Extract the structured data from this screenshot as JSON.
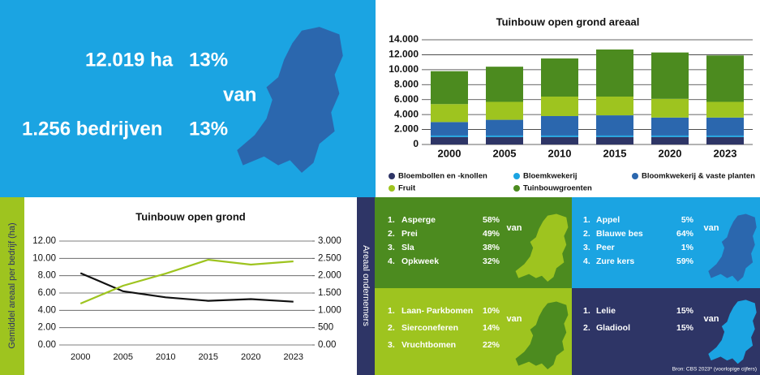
{
  "summary": {
    "area": "12.019 ha",
    "area_share": "13%",
    "van": "van",
    "farms": "1.256 bedrijven",
    "farms_share": "13%"
  },
  "chart_data": [
    {
      "type": "stacked_bar",
      "title": "Tuinbouw open grond areaal",
      "categories": [
        "2000",
        "2005",
        "2010",
        "2015",
        "2020",
        "2023"
      ],
      "series": [
        {
          "name": "Bloembollen en -knollen",
          "color": "#2e3566",
          "values": [
            1000,
            1000,
            1000,
            1000,
            1000,
            1000
          ]
        },
        {
          "name": "Bloemkwekerij",
          "color": "#1ba4e2",
          "values": [
            200,
            200,
            200,
            200,
            200,
            200
          ]
        },
        {
          "name": "Bloomkwekerij & vaste planten",
          "color": "#2b67ae",
          "values": [
            1800,
            2100,
            2600,
            2700,
            2400,
            2400
          ]
        },
        {
          "name": "Fruit",
          "color": "#9ec41f",
          "values": [
            2400,
            2400,
            2600,
            2500,
            2500,
            2100
          ]
        },
        {
          "name": "Tuinbouwgroenten",
          "color": "#4c8b1f",
          "values": [
            4400,
            4700,
            5100,
            6300,
            6200,
            6200
          ]
        }
      ],
      "ylim": [
        0,
        14000
      ],
      "yticks": [
        0,
        {
          "value": 2000,
          "label": "2.000"
        },
        {
          "value": 4000,
          "label": "4.000"
        },
        {
          "value": 6000,
          "label": "6.000"
        },
        {
          "value": 8000,
          "label": "8.000"
        },
        {
          "value": 10000,
          "label": "10.000"
        },
        {
          "value": 12000,
          "label": "12.000"
        },
        {
          "value": 14000,
          "label": "14.000"
        }
      ],
      "grid": true
    },
    {
      "type": "line",
      "title": "Tuinbouw open grond",
      "y_label": "Gemiddel areaal per bedrijf (ha)",
      "categories": [
        "2000",
        "2005",
        "2010",
        "2015",
        "2020",
        "2023"
      ],
      "series": [
        {
          "color": "#111111",
          "axis": "y",
          "values": [
            8.3,
            6.2,
            5.5,
            5.1,
            5.3,
            5.0
          ]
        },
        {
          "color": "#9ec41f",
          "axis": "y2",
          "values": [
            1195,
            1711,
            2062,
            2461,
            2320,
            2414
          ]
        }
      ],
      "ylim": [
        0,
        12
      ],
      "yticks": [
        {
          "value": 0,
          "label": "0.00"
        },
        {
          "value": 2,
          "label": "2.00"
        },
        {
          "value": 4,
          "label": "4.00"
        },
        {
          "value": 6,
          "label": "6.00"
        },
        {
          "value": 8,
          "label": "8.00"
        },
        {
          "value": 10,
          "label": "10.00"
        },
        {
          "value": 12,
          "label": "12.00"
        }
      ],
      "y2lim": [
        0,
        3000
      ],
      "y2ticks": [
        {
          "value": 0,
          "label": "0.00"
        },
        500,
        {
          "value": 1000,
          "label": "1.000"
        },
        {
          "value": 1500,
          "label": "1.500"
        },
        {
          "value": 2000,
          "label": "2.000"
        },
        {
          "value": 2500,
          "label": "2.500"
        },
        {
          "value": 3000,
          "label": "3.000"
        }
      ],
      "grid": true
    }
  ],
  "side_label": "Areaal ondernemers",
  "panels": [
    {
      "van": "van",
      "items": [
        {
          "rank": "1.",
          "name": "Asperge",
          "share": "58%"
        },
        {
          "rank": "2.",
          "name": "Prei",
          "share": "49%"
        },
        {
          "rank": "3.",
          "name": "Sla",
          "share": "38%"
        },
        {
          "rank": "4.",
          "name": "Opkweek",
          "share": "32%"
        }
      ]
    },
    {
      "van": "van",
      "items": [
        {
          "rank": "1.",
          "name": "Appel",
          "share": "5%"
        },
        {
          "rank": "2.",
          "name": "Blauwe bes",
          "share": "64%"
        },
        {
          "rank": "3.",
          "name": "Peer",
          "share": "1%"
        },
        {
          "rank": "4.",
          "name": "Zure kers",
          "share": "59%"
        }
      ]
    },
    {
      "van": "van",
      "items": [
        {
          "rank": "1.",
          "name": "Laan- Parkbomen",
          "share": "10%"
        },
        {
          "rank": "2.",
          "name": "Sierconeferen",
          "share": "14%"
        },
        {
          "rank": "3.",
          "name": "Vruchtbomen",
          "share": "22%"
        }
      ]
    },
    {
      "van": "van",
      "items": [
        {
          "rank": "1.",
          "name": "Lelie",
          "share": "15%"
        },
        {
          "rank": "2.",
          "name": "Gladiool",
          "share": "15%"
        }
      ]
    }
  ],
  "source": "Bron: CBS 2023* (voorlopige cijfers)"
}
